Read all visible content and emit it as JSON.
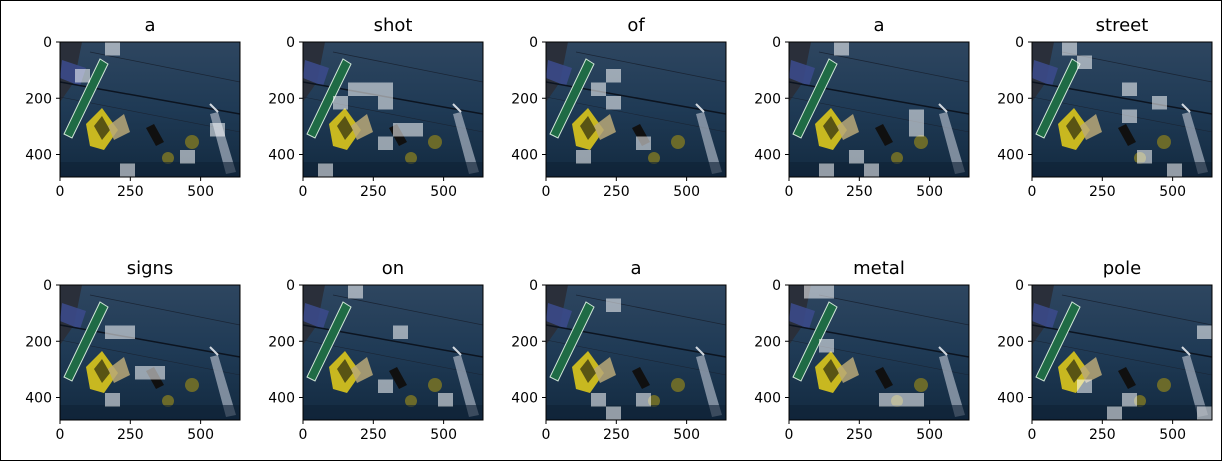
{
  "figure": {
    "panels": [
      {
        "title": "a",
        "highlight": [
          [
            1,
            2
          ],
          [
            3,
            0
          ],
          [
            10,
            6
          ],
          [
            4,
            9
          ],
          [
            8,
            8
          ]
        ]
      },
      {
        "title": "shot",
        "highlight": [
          [
            3,
            3
          ],
          [
            4,
            3
          ],
          [
            5,
            3
          ],
          [
            5,
            4
          ],
          [
            5,
            7
          ],
          [
            6,
            6
          ],
          [
            7,
            6
          ],
          [
            2,
            4
          ],
          [
            1,
            9
          ]
        ]
      },
      {
        "title": "of",
        "highlight": [
          [
            4,
            2
          ],
          [
            3,
            3
          ],
          [
            6,
            7
          ],
          [
            4,
            4
          ],
          [
            2,
            8
          ]
        ]
      },
      {
        "title": "a",
        "highlight": [
          [
            3,
            0
          ],
          [
            4,
            8
          ],
          [
            5,
            9
          ],
          [
            8,
            5
          ],
          [
            8,
            6
          ],
          [
            2,
            9
          ]
        ]
      },
      {
        "title": "street",
        "highlight": [
          [
            2,
            0
          ],
          [
            3,
            1
          ],
          [
            6,
            3
          ],
          [
            6,
            5
          ],
          [
            8,
            4
          ],
          [
            7,
            8
          ],
          [
            9,
            9
          ]
        ]
      },
      {
        "title": "signs",
        "highlight": [
          [
            3,
            3
          ],
          [
            4,
            3
          ],
          [
            5,
            6
          ],
          [
            6,
            6
          ],
          [
            3,
            8
          ]
        ]
      },
      {
        "title": "on",
        "highlight": [
          [
            3,
            0
          ],
          [
            5,
            7
          ],
          [
            9,
            8
          ],
          [
            6,
            3
          ]
        ]
      },
      {
        "title": "a",
        "highlight": [
          [
            4,
            1
          ],
          [
            3,
            8
          ],
          [
            6,
            8
          ],
          [
            4,
            9
          ]
        ]
      },
      {
        "title": "metal",
        "highlight": [
          [
            1,
            0
          ],
          [
            2,
            0
          ],
          [
            2,
            4
          ],
          [
            6,
            8
          ],
          [
            7,
            8
          ],
          [
            8,
            8
          ]
        ]
      },
      {
        "title": "pole",
        "highlight": [
          [
            11,
            3
          ],
          [
            6,
            8
          ],
          [
            5,
            9
          ],
          [
            11,
            9
          ],
          [
            3,
            7
          ]
        ]
      }
    ],
    "x_ticks": [
      "0",
      "250",
      "500"
    ],
    "y_ticks": [
      "0",
      "200",
      "400"
    ]
  }
}
